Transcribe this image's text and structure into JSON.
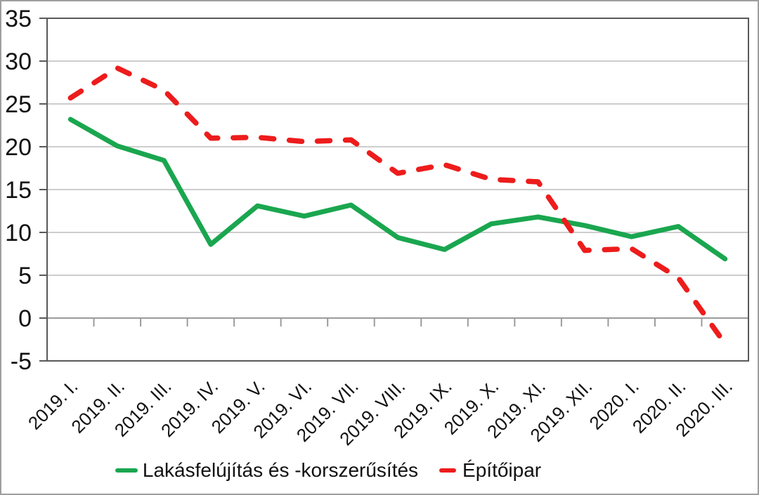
{
  "chart_data": {
    "type": "line",
    "title": "",
    "categories": [
      "2019. I.",
      "2019. II.",
      "2019. III.",
      "2019. IV.",
      "2019. V.",
      "2019. VI.",
      "2019. VII.",
      "2019. VIII.",
      "2019. IX.",
      "2019. X.",
      "2019. XI.",
      "2019. XII.",
      "2020. I.",
      "2020. II.",
      "2020. III."
    ],
    "series": [
      {
        "name": "Lakásfelújítás és -korszerűsítés",
        "color": "#1AA64F",
        "line_style": "solid",
        "values": [
          23.2,
          20.1,
          18.4,
          8.6,
          13.1,
          11.9,
          13.2,
          9.4,
          8.0,
          11.0,
          11.8,
          10.8,
          9.5,
          10.7,
          6.9
        ]
      },
      {
        "name": "Építőipar",
        "color": "#ED1C1C",
        "line_style": "dashed",
        "values": [
          25.7,
          29.2,
          26.6,
          21.0,
          21.1,
          20.6,
          20.8,
          16.9,
          17.9,
          16.2,
          15.9,
          7.9,
          8.1,
          4.7,
          -3.0
        ]
      }
    ],
    "ylim": [
      -5,
      35
    ],
    "y_ticks": [
      35,
      30,
      25,
      20,
      15,
      10,
      5,
      0,
      -5
    ],
    "xlabel": "",
    "ylabel": "",
    "grid": "horizontal",
    "legend_position": "bottom"
  },
  "colors": {
    "background": "#FFFFFF",
    "gridline": "#C6C6C6",
    "zero_axis": "#9B9B9B",
    "plot_border": "#595959",
    "text": "#111111",
    "frame_border": "#9E9E9E"
  }
}
